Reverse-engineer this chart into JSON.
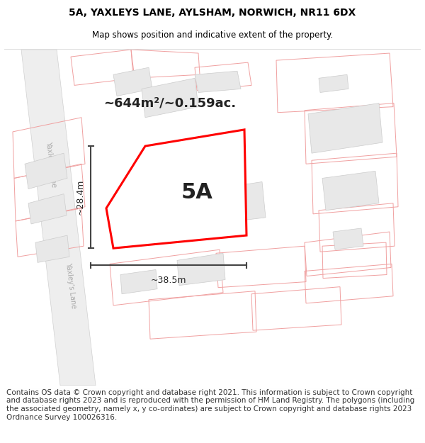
{
  "title": "5A, YAXLEYS LANE, AYLSHAM, NORWICH, NR11 6DX",
  "subtitle": "Map shows position and indicative extent of the property.",
  "footer": "Contains OS data © Crown copyright and database right 2021. This information is subject to Crown copyright and database rights 2023 and is reproduced with the permission of HM Land Registry. The polygons (including the associated geometry, namely x, y co-ordinates) are subject to Crown copyright and database rights 2023 Ordnance Survey 100026316.",
  "area_label": "~644m²/~0.159ac.",
  "dim_h": "~38.5m",
  "dim_v": "~28.4m",
  "plot_label": "5A",
  "map_bg": "#ffffff",
  "building_fill": "#e8e8e8",
  "building_outline": "#cccccc",
  "pink_outline": "#f0a0a0",
  "red_polygon_color": "#ff0000",
  "red_poly_fill": "#ffffff",
  "dim_line_color": "#444444",
  "lane_text_color": "#aaaaaa",
  "road_fill": "#eeeeee",
  "road_edge": "#d0d0d0",
  "title_color": "#000000",
  "footer_color": "#333333",
  "title_fontsize": 10,
  "subtitle_fontsize": 8.5,
  "footer_fontsize": 7.5,
  "area_fontsize": 13,
  "label_fontsize": 22,
  "dim_fontsize": 9,
  "lane_fontsize": 7
}
